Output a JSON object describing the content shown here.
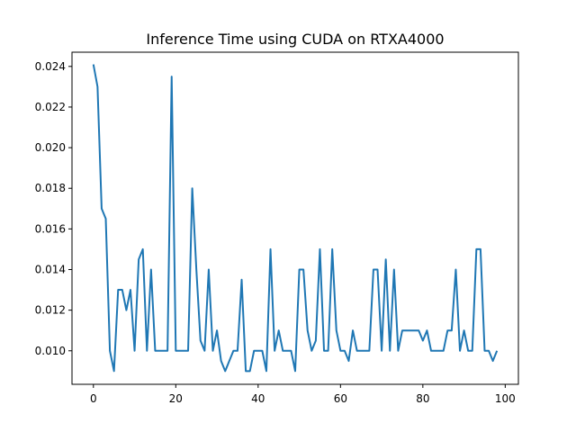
{
  "chart_data": {
    "type": "line",
    "title": "Inference Time using CUDA on RTXA4000",
    "xlabel": "",
    "ylabel": "",
    "xlim": [
      -5.2,
      103.2
    ],
    "ylim": [
      0.00835,
      0.0247
    ],
    "x_ticks": [
      0,
      20,
      40,
      60,
      80,
      100
    ],
    "y_ticks": [
      0.01,
      0.012,
      0.014,
      0.016,
      0.018,
      0.02,
      0.022,
      0.024
    ],
    "y_tick_labels": [
      "0.010",
      "0.012",
      "0.014",
      "0.016",
      "0.018",
      "0.020",
      "0.022",
      "0.024"
    ],
    "x_tick_labels": [
      "0",
      "20",
      "40",
      "60",
      "80",
      "100"
    ],
    "grid": false,
    "line_color": "#1f77b4",
    "series": [
      {
        "values": [
          0.0241,
          0.023,
          0.017,
          0.0165,
          0.01,
          0.009,
          0.013,
          0.013,
          0.012,
          0.013,
          0.01,
          0.0145,
          0.015,
          0.01,
          0.014,
          0.01,
          0.01,
          0.01,
          0.01,
          0.0235,
          0.01,
          0.01,
          0.01,
          0.01,
          0.018,
          0.014,
          0.0105,
          0.01,
          0.014,
          0.01,
          0.011,
          0.0095,
          0.009,
          0.0095,
          0.01,
          0.01,
          0.0135,
          0.009,
          0.009,
          0.01,
          0.01,
          0.01,
          0.009,
          0.015,
          0.01,
          0.011,
          0.01,
          0.01,
          0.01,
          0.009,
          0.014,
          0.014,
          0.011,
          0.01,
          0.0105,
          0.015,
          0.01,
          0.01,
          0.015,
          0.011,
          0.01,
          0.01,
          0.0095,
          0.011,
          0.01,
          0.01,
          0.01,
          0.01,
          0.014,
          0.014,
          0.01,
          0.0145,
          0.01,
          0.014,
          0.01,
          0.011,
          0.011,
          0.011,
          0.011,
          0.011,
          0.0105,
          0.011,
          0.01,
          0.01,
          0.01,
          0.01,
          0.011,
          0.011,
          0.014,
          0.01,
          0.011,
          0.01,
          0.01,
          0.015,
          0.015,
          0.01,
          0.01,
          0.0095,
          0.01
        ]
      }
    ]
  }
}
